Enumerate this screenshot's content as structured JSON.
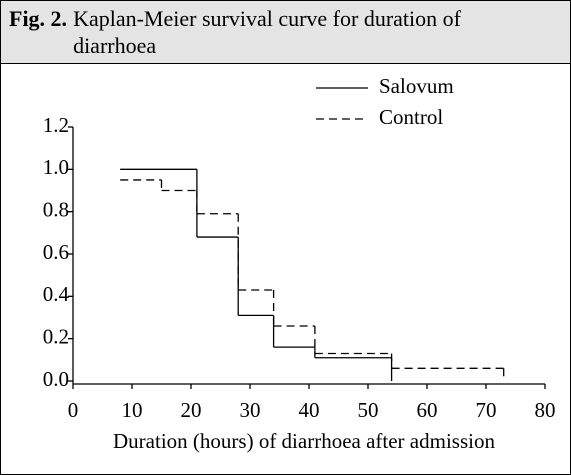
{
  "figure_label": "Fig. 2.",
  "chart_data": {
    "type": "step",
    "title": "Kaplan-Meier survival curve for duration of diarrhoea",
    "x_label": "Duration (hours) of diarrhoea after admission",
    "xlim": [
      0,
      80
    ],
    "xticks": [
      0,
      10,
      20,
      30,
      40,
      50,
      60,
      70,
      80
    ],
    "ylim": [
      0,
      1.2
    ],
    "yticks": [
      {
        "value": 0,
        "label": "0.0"
      },
      0.2,
      0.4,
      0.6,
      0.8,
      {
        "value": 1,
        "label": "1.0"
      },
      1.2
    ],
    "legend": "top-right",
    "series": [
      {
        "name": "Salovum",
        "color": "#000000",
        "dash": "solid",
        "x": [
          8,
          21,
          28,
          34,
          41,
          54
        ],
        "values": [
          1.0,
          0.68,
          0.31,
          0.16,
          0.11,
          0
        ]
      },
      {
        "name": "Control",
        "color": "#000000",
        "dash": "dashed",
        "x": [
          8,
          15,
          21,
          28,
          34,
          41,
          54,
          73
        ],
        "values": [
          0.95,
          0.9,
          0.79,
          0.43,
          0.26,
          0.13,
          0.06,
          0
        ]
      }
    ]
  }
}
